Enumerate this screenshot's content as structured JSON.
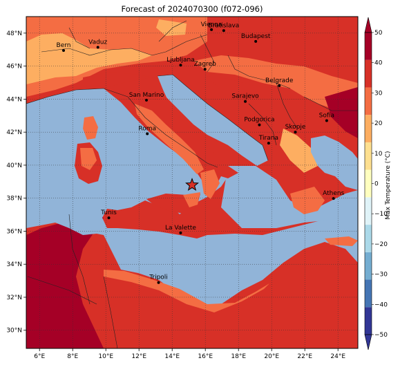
{
  "title": "Forecast of 2024070300 (f072-096)",
  "colorbar": {
    "label": "Max Temperature (°C)",
    "ticks": [
      "50",
      "40",
      "30",
      "20",
      "10",
      "0",
      "−10",
      "−20",
      "−30",
      "−40",
      "−50"
    ],
    "colors": [
      "#313695",
      "#4575b4",
      "#74add1",
      "#abd9e9",
      "#e0f3f8",
      "#ffffbf",
      "#fee090",
      "#fdae61",
      "#f46d43",
      "#d73027",
      "#a50026"
    ]
  },
  "axes": {
    "lon_labels": [
      "6°E",
      "8°E",
      "10°E",
      "12°E",
      "14°E",
      "16°E",
      "18°E",
      "20°E",
      "22°E",
      "24°E"
    ],
    "lat_labels": [
      "48°N",
      "46°N",
      "44°N",
      "42°N",
      "40°N",
      "38°N",
      "36°N",
      "34°N",
      "32°N",
      "30°N"
    ],
    "lon_range": [
      5.2,
      25.2
    ],
    "lat_range": [
      28.9,
      49.0
    ]
  },
  "colors": {
    "sea": "#91b4d8",
    "temp_20_25": "#fdae61",
    "temp_25_30": "#f46d43",
    "temp_30_35": "#d73027",
    "temp_35_plus": "#a50026",
    "border": "#333333"
  },
  "marker": {
    "icon": "star-icon",
    "lon": 15.2,
    "lat": 38.8,
    "color": "#d73027"
  },
  "cities": [
    {
      "name": "Bern",
      "lon": 7.45,
      "lat": 46.95
    },
    {
      "name": "Vaduz",
      "lon": 9.52,
      "lat": 47.14
    },
    {
      "name": "Vienna",
      "lon": 16.37,
      "lat": 48.21
    },
    {
      "name": "Bratislava",
      "lon": 17.11,
      "lat": 48.15
    },
    {
      "name": "Budapest",
      "lon": 19.04,
      "lat": 47.5
    },
    {
      "name": "Ljubljana",
      "lon": 14.51,
      "lat": 46.06
    },
    {
      "name": "Zagreb",
      "lon": 15.98,
      "lat": 45.81
    },
    {
      "name": "Belgrade",
      "lon": 20.46,
      "lat": 44.82
    },
    {
      "name": "San Marino",
      "lon": 12.45,
      "lat": 43.94
    },
    {
      "name": "Sarajevo",
      "lon": 18.41,
      "lat": 43.86
    },
    {
      "name": "Sofia",
      "lon": 23.32,
      "lat": 42.7
    },
    {
      "name": "Podgorica",
      "lon": 19.26,
      "lat": 42.44
    },
    {
      "name": "Skopje",
      "lon": 21.43,
      "lat": 42.0
    },
    {
      "name": "Roma",
      "lon": 12.5,
      "lat": 41.9
    },
    {
      "name": "Tirana",
      "lon": 19.82,
      "lat": 41.33
    },
    {
      "name": "Athens",
      "lon": 23.73,
      "lat": 37.98
    },
    {
      "name": "Tunis",
      "lon": 10.18,
      "lat": 36.81
    },
    {
      "name": "La Valette",
      "lon": 14.51,
      "lat": 35.9
    },
    {
      "name": "Tripoli",
      "lon": 13.18,
      "lat": 32.89
    }
  ]
}
